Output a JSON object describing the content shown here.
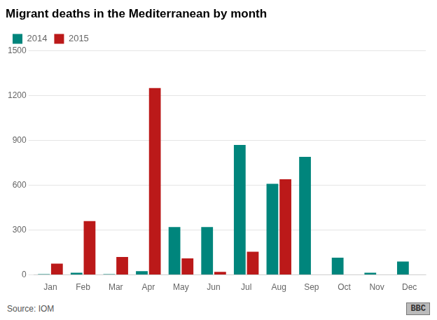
{
  "chart_data": {
    "type": "bar",
    "title": "Migrant deaths in the Mediterranean by month",
    "categories": [
      "Jan",
      "Feb",
      "Mar",
      "Apr",
      "May",
      "Jun",
      "Jul",
      "Aug",
      "Sep",
      "Oct",
      "Nov",
      "Dec"
    ],
    "series": [
      {
        "name": "2014",
        "color": "#00857C",
        "values": [
          5,
          15,
          5,
          25,
          320,
          320,
          870,
          610,
          790,
          115,
          15,
          90
        ]
      },
      {
        "name": "2015",
        "color": "#BB1919",
        "values": [
          75,
          360,
          120,
          1250,
          110,
          20,
          155,
          640,
          0,
          0,
          0,
          0
        ]
      }
    ],
    "ylim": [
      0,
      1500
    ],
    "yticks": [
      0,
      300,
      600,
      900,
      1200,
      1500
    ],
    "grid": true,
    "legend": "upper left",
    "annotations": [
      "Source: IOM",
      "BBC"
    ]
  }
}
